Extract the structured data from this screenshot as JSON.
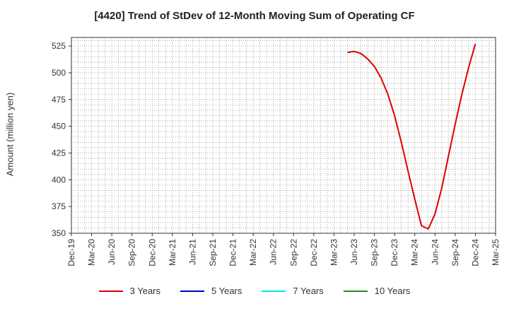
{
  "chart_data": {
    "type": "line",
    "title": "[4420]  Trend of StDev of 12-Month Moving Sum of Operating CF",
    "ylabel": "Amount (million yen)",
    "xlabel": "",
    "ylim": [
      350,
      533
    ],
    "yticks": [
      350,
      375,
      400,
      425,
      450,
      475,
      500,
      525
    ],
    "xticks": [
      "Dec-19",
      "Mar-20",
      "Jun-20",
      "Sep-20",
      "Dec-20",
      "Mar-21",
      "Jun-21",
      "Sep-21",
      "Dec-21",
      "Mar-22",
      "Jun-22",
      "Sep-22",
      "Dec-22",
      "Mar-23",
      "Jun-23",
      "Sep-23",
      "Dec-23",
      "Mar-24",
      "Jun-24",
      "Sep-24",
      "Dec-24",
      "Mar-25"
    ],
    "grid": true,
    "legend_position": "bottom",
    "series": [
      {
        "name": "3 Years",
        "color": "#dd0000",
        "x": [
          "May-23",
          "Jun-23",
          "Jul-23",
          "Aug-23",
          "Sep-23",
          "Oct-23",
          "Nov-23",
          "Dec-23",
          "Jan-24",
          "Feb-24",
          "Mar-24",
          "Apr-24",
          "May-24",
          "Jun-24",
          "Jul-24",
          "Aug-24",
          "Sep-24",
          "Oct-24",
          "Nov-24",
          "Dec-24"
        ],
        "values": [
          519,
          520,
          518,
          513,
          506,
          495,
          480,
          460,
          435,
          408,
          382,
          357,
          354,
          368,
          392,
          422,
          452,
          480,
          505,
          527
        ]
      },
      {
        "name": "5 Years",
        "color": "#0000cc",
        "x": [],
        "values": []
      },
      {
        "name": "7 Years",
        "color": "#00e5ee",
        "x": [],
        "values": []
      },
      {
        "name": "10 Years",
        "color": "#228b22",
        "x": [],
        "values": []
      }
    ]
  }
}
